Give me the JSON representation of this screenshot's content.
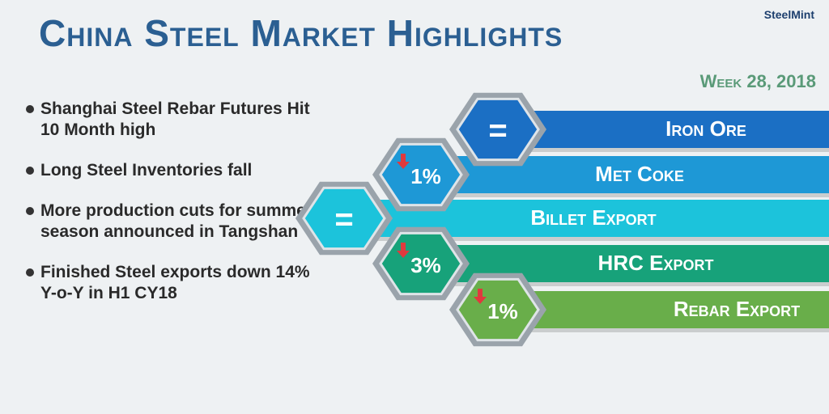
{
  "header": {
    "title": "China Steel Market Highlights",
    "brand": "SteelMint",
    "week": "Week 28, 2018"
  },
  "bullets": [
    "Shanghai Steel Rebar Futures Hit 10 Month high",
    "Long Steel Inventories fall",
    "More production cuts for summer season announced in Tangshan",
    "Finished Steel exports down 14% Y-o-Y in H1 CY18"
  ],
  "items": [
    {
      "label": "Iron Ore",
      "change": "=",
      "trend": "flat",
      "color": "#1b6fc4"
    },
    {
      "label": "Met Coke",
      "change": "1%",
      "trend": "down",
      "color": "#1e98d6"
    },
    {
      "label": "Billet Export",
      "change": "=",
      "trend": "flat",
      "color": "#1cc3db"
    },
    {
      "label": "HRC Export",
      "change": "3%",
      "trend": "down",
      "color": "#17a27a"
    },
    {
      "label": "Rebar Export",
      "change": "1%",
      "trend": "down",
      "color": "#69ae4a"
    }
  ]
}
